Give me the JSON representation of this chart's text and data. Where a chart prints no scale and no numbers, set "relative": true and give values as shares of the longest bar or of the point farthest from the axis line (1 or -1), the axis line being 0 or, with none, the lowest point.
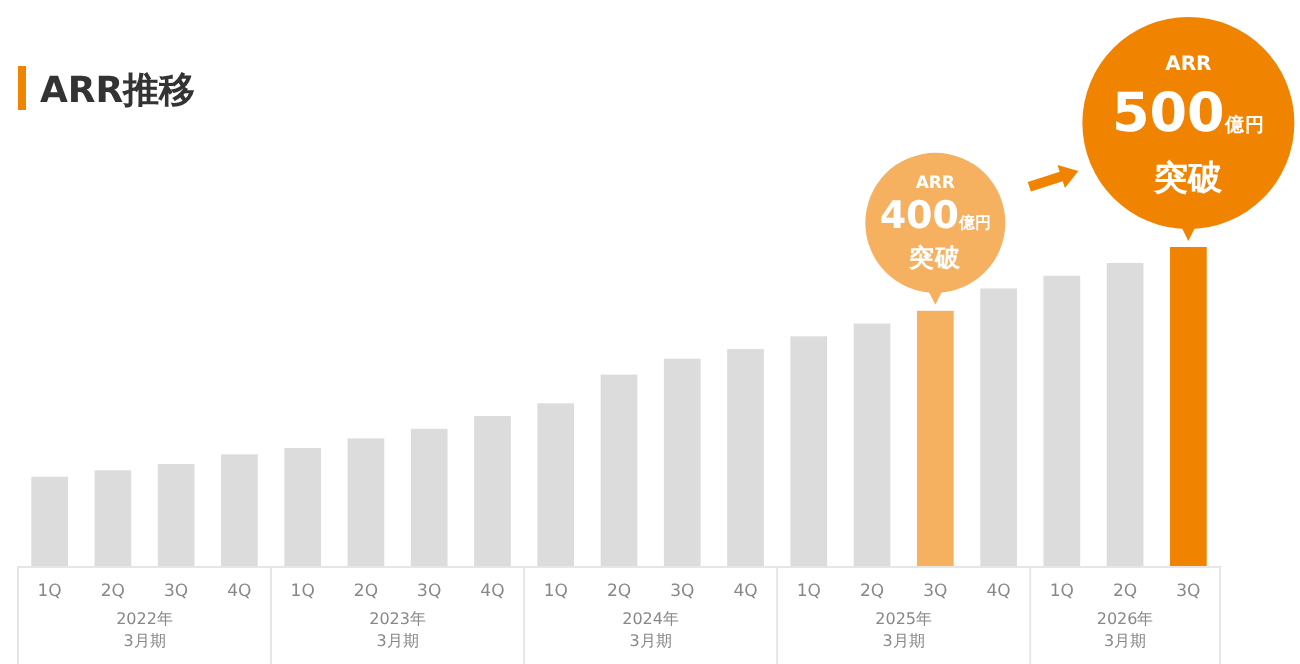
{
  "chart_data": {
    "type": "bar",
    "title": "ARR推移",
    "relative": true,
    "categories": [
      "1Q",
      "2Q",
      "3Q",
      "4Q",
      "1Q",
      "2Q",
      "3Q",
      "4Q",
      "1Q",
      "2Q",
      "3Q",
      "4Q",
      "1Q",
      "2Q",
      "3Q",
      "4Q",
      "1Q",
      "2Q",
      "3Q"
    ],
    "values": [
      0.28,
      0.3,
      0.32,
      0.35,
      0.37,
      0.4,
      0.43,
      0.47,
      0.51,
      0.6,
      0.65,
      0.68,
      0.72,
      0.76,
      0.8,
      0.87,
      0.91,
      0.95,
      1
    ],
    "colors": [
      "#dcdcdc",
      "#dcdcdc",
      "#dcdcdc",
      "#dcdcdc",
      "#dcdcdc",
      "#dcdcdc",
      "#dcdcdc",
      "#dcdcdc",
      "#dcdcdc",
      "#dcdcdc",
      "#dcdcdc",
      "#dcdcdc",
      "#dcdcdc",
      "#dcdcdc",
      "#f5b060",
      "#dcdcdc",
      "#dcdcdc",
      "#dcdcdc",
      "#f08300"
    ],
    "annotations": [
      "2022年\n3月期",
      "2023年\n3月期",
      "2024年\n3月期",
      "2025年\n3月期",
      "2026年\n3月期",
      "ARR\n400億円突破",
      "ARR\n500億円突破"
    ]
  }
}
